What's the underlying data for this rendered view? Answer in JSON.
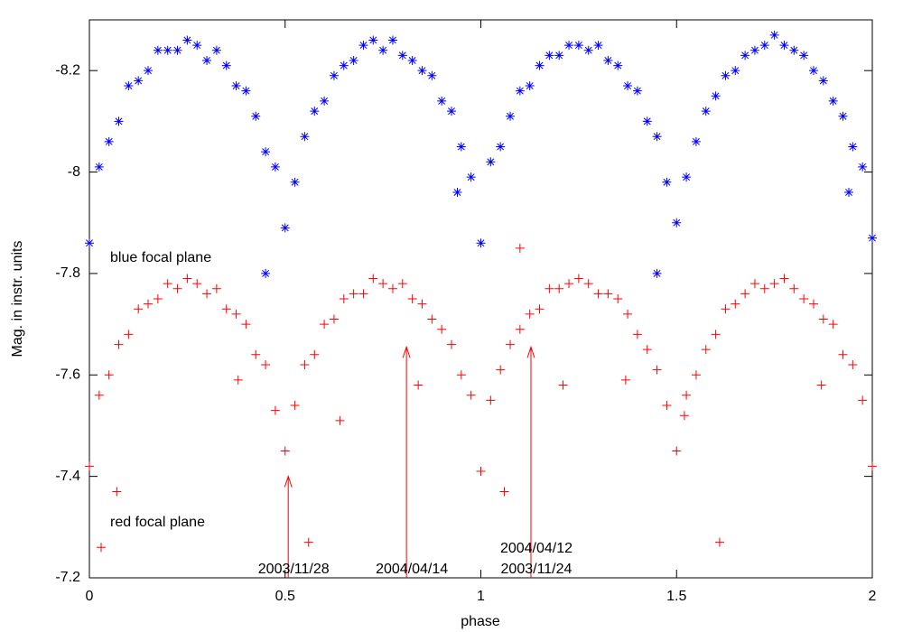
{
  "chart_data": {
    "type": "scatter",
    "x_label": "phase",
    "y_label": "Mag. in instr. units",
    "xlim": [
      0,
      2
    ],
    "ylim": [
      -7.2,
      -8.3
    ],
    "xticks": [
      0,
      0.5,
      1,
      1.5,
      2
    ],
    "yticks": [
      -8.2,
      -8,
      -7.8,
      -7.6,
      -7.4,
      -7.2
    ],
    "series": [
      {
        "name": "blue focal plane",
        "color": "#0000ff",
        "marker": "asterisk",
        "x": [
          0,
          0.025,
          0.05,
          0.075,
          0.1,
          0.125,
          0.15,
          0.175,
          0.2,
          0.225,
          0.25,
          0.275,
          0.3,
          0.325,
          0.35,
          0.375,
          0.4,
          0.425,
          0.45,
          0.475,
          0.5,
          0.525,
          0.55,
          0.575,
          0.6,
          0.625,
          0.65,
          0.675,
          0.7,
          0.725,
          0.75,
          0.775,
          0.8,
          0.825,
          0.85,
          0.875,
          0.9,
          0.925,
          0.95,
          0.975,
          1,
          1.025,
          1.05,
          1.075,
          1.1,
          1.125,
          1.15,
          1.175,
          1.2,
          1.225,
          1.25,
          1.275,
          1.3,
          1.325,
          1.35,
          1.375,
          1.4,
          1.425,
          1.45,
          1.475,
          1.5,
          1.525,
          1.55,
          1.575,
          1.6,
          1.625,
          1.65,
          1.675,
          1.7,
          1.725,
          1.75,
          1.775,
          1.8,
          1.825,
          1.85,
          1.875,
          1.9,
          1.925,
          1.95,
          1.975,
          2,
          0.45,
          1.45,
          0.94,
          1.94
        ],
        "values": [
          -7.86,
          -8.01,
          -8.06,
          -8.1,
          -8.17,
          -8.18,
          -8.2,
          -8.24,
          -8.24,
          -8.24,
          -8.26,
          -8.25,
          -8.22,
          -8.24,
          -8.21,
          -8.17,
          -8.16,
          -8.11,
          -8.04,
          -8.01,
          -7.89,
          -7.98,
          -8.07,
          -8.12,
          -8.14,
          -8.19,
          -8.21,
          -8.22,
          -8.25,
          -8.26,
          -8.24,
          -8.26,
          -8.23,
          -8.22,
          -8.2,
          -8.19,
          -8.14,
          -8.12,
          -8.05,
          -7.99,
          -7.86,
          -8.02,
          -8.05,
          -8.11,
          -8.16,
          -8.17,
          -8.21,
          -8.23,
          -8.23,
          -8.25,
          -8.25,
          -8.24,
          -8.25,
          -8.22,
          -8.21,
          -8.17,
          -8.16,
          -8.1,
          -8.07,
          -7.98,
          -7.9,
          -7.99,
          -8.06,
          -8.12,
          -8.15,
          -8.19,
          -8.2,
          -8.23,
          -8.24,
          -8.25,
          -8.27,
          -8.25,
          -8.24,
          -8.23,
          -8.2,
          -8.18,
          -8.14,
          -8.11,
          -8.05,
          -8.01,
          -7.87,
          -7.8,
          -7.8,
          -7.96,
          -7.96
        ]
      },
      {
        "name": "red focal plane",
        "color": "#ff0000",
        "marker": "plus",
        "x": [
          0,
          0.025,
          0.05,
          0.075,
          0.1,
          0.125,
          0.15,
          0.175,
          0.2,
          0.225,
          0.25,
          0.275,
          0.3,
          0.325,
          0.35,
          0.375,
          0.4,
          0.425,
          0.45,
          0.475,
          0.5,
          0.525,
          0.55,
          0.575,
          0.6,
          0.625,
          0.65,
          0.675,
          0.7,
          0.725,
          0.75,
          0.775,
          0.8,
          0.825,
          0.85,
          0.875,
          0.9,
          0.925,
          0.95,
          0.975,
          1,
          1.025,
          1.05,
          1.075,
          1.1,
          1.125,
          1.15,
          1.175,
          1.2,
          1.225,
          1.25,
          1.275,
          1.3,
          1.325,
          1.35,
          1.375,
          1.4,
          1.425,
          1.45,
          1.475,
          1.5,
          1.525,
          1.55,
          1.575,
          1.6,
          1.625,
          1.65,
          1.675,
          1.7,
          1.725,
          1.75,
          1.775,
          1.8,
          1.825,
          1.85,
          1.875,
          1.9,
          1.925,
          1.95,
          1.975,
          2,
          0.07,
          0.38,
          0.64,
          0.56,
          0.84,
          1.06,
          1.21,
          1.37,
          1.52,
          1.61,
          1.87,
          0.03,
          1.1
        ],
        "values": [
          -7.42,
          -7.56,
          -7.6,
          -7.66,
          -7.68,
          -7.73,
          -7.74,
          -7.75,
          -7.78,
          -7.77,
          -7.79,
          -7.78,
          -7.76,
          -7.77,
          -7.73,
          -7.72,
          -7.7,
          -7.64,
          -7.62,
          -7.53,
          -7.45,
          -7.54,
          -7.62,
          -7.64,
          -7.7,
          -7.71,
          -7.75,
          -7.76,
          -7.76,
          -7.79,
          -7.78,
          -7.77,
          -7.78,
          -7.75,
          -7.74,
          -7.71,
          -7.69,
          -7.66,
          -7.6,
          -7.56,
          -7.41,
          -7.55,
          -7.61,
          -7.66,
          -7.69,
          -7.72,
          -7.73,
          -7.77,
          -7.77,
          -7.78,
          -7.79,
          -7.78,
          -7.76,
          -7.76,
          -7.75,
          -7.72,
          -7.68,
          -7.65,
          -7.61,
          -7.54,
          -7.45,
          -7.56,
          -7.6,
          -7.65,
          -7.68,
          -7.73,
          -7.74,
          -7.76,
          -7.78,
          -7.77,
          -7.78,
          -7.79,
          -7.77,
          -7.75,
          -7.74,
          -7.71,
          -7.7,
          -7.64,
          -7.62,
          -7.55,
          -7.42,
          -7.37,
          -7.59,
          -7.51,
          -7.27,
          -7.58,
          -7.37,
          -7.58,
          -7.59,
          -7.52,
          -7.27,
          -7.58,
          -7.26,
          -7.85
        ]
      }
    ],
    "annotations": [
      {
        "lines": [
          "2003/11/28"
        ],
        "x": 0.508,
        "y": -7.4
      },
      {
        "lines": [
          "2004/04/14"
        ],
        "x": 0.81,
        "y": -7.655
      },
      {
        "lines": [
          "2004/04/12",
          "2003/11/24"
        ],
        "x": 1.128,
        "y": -7.655
      }
    ]
  }
}
